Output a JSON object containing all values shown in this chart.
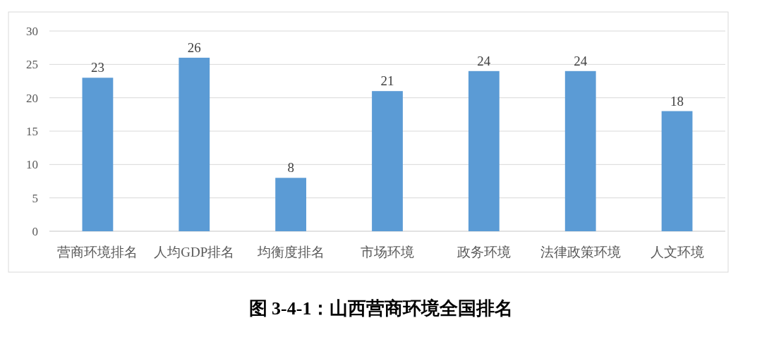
{
  "chart_data": {
    "type": "bar",
    "title": "图 3-4-1：山西营商环境全国排名",
    "categories": [
      "营商环境排名",
      "人均GDP排名",
      "均衡度排名",
      "市场环境",
      "政务环境",
      "法律政策环境",
      "人文环境"
    ],
    "values": [
      23,
      26,
      8,
      21,
      24,
      24,
      18
    ],
    "color": "#5b9bd5",
    "ylim": [
      0,
      30
    ],
    "yticks": [
      0,
      5,
      10,
      15,
      20,
      25,
      30
    ],
    "grid": "y",
    "data_labels": true
  }
}
